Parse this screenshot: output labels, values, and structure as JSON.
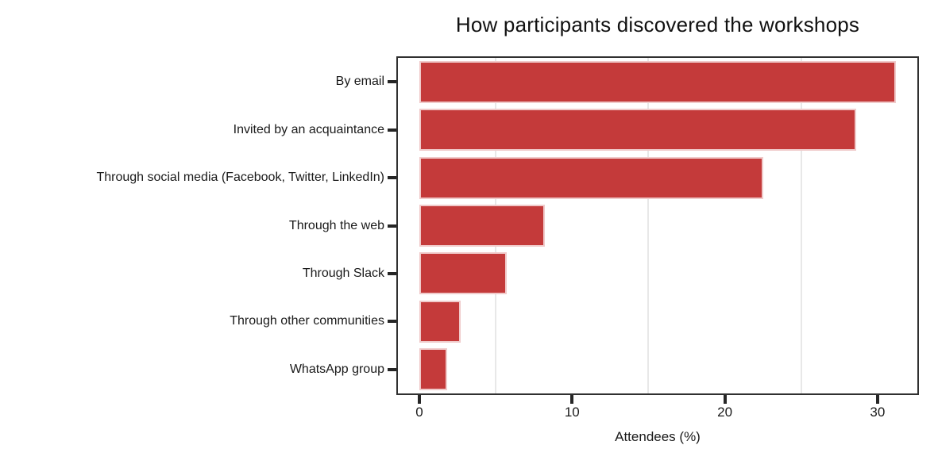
{
  "title": "How participants discovered the workshops",
  "chart_data": {
    "type": "bar",
    "orientation": "horizontal",
    "title": "How participants discovered the workshops",
    "xlabel": "Attendees (%)",
    "ylabel": "",
    "categories": [
      "By email",
      "Invited by an acquaintance",
      "Through social media (Facebook, Twitter, LinkedIn)",
      "Through the web",
      "Through Slack",
      "Through other communities",
      "WhatsApp group"
    ],
    "values": [
      31.2,
      28.6,
      22.5,
      8.2,
      5.7,
      2.7,
      1.8
    ],
    "xlim": [
      0,
      32.5
    ],
    "x_ticks": [
      0,
      10,
      20,
      30
    ],
    "minor_gridlines": [
      5,
      15,
      25
    ],
    "grid": "vertical-minor-only",
    "legend": "none",
    "colors": {
      "bar_fill": "#c43a3a",
      "bar_edge": "#f0caca",
      "panel_border": "#303030",
      "gridline": "#e8e8e8",
      "tick": "#262626",
      "text": "#1a1a1a"
    }
  }
}
